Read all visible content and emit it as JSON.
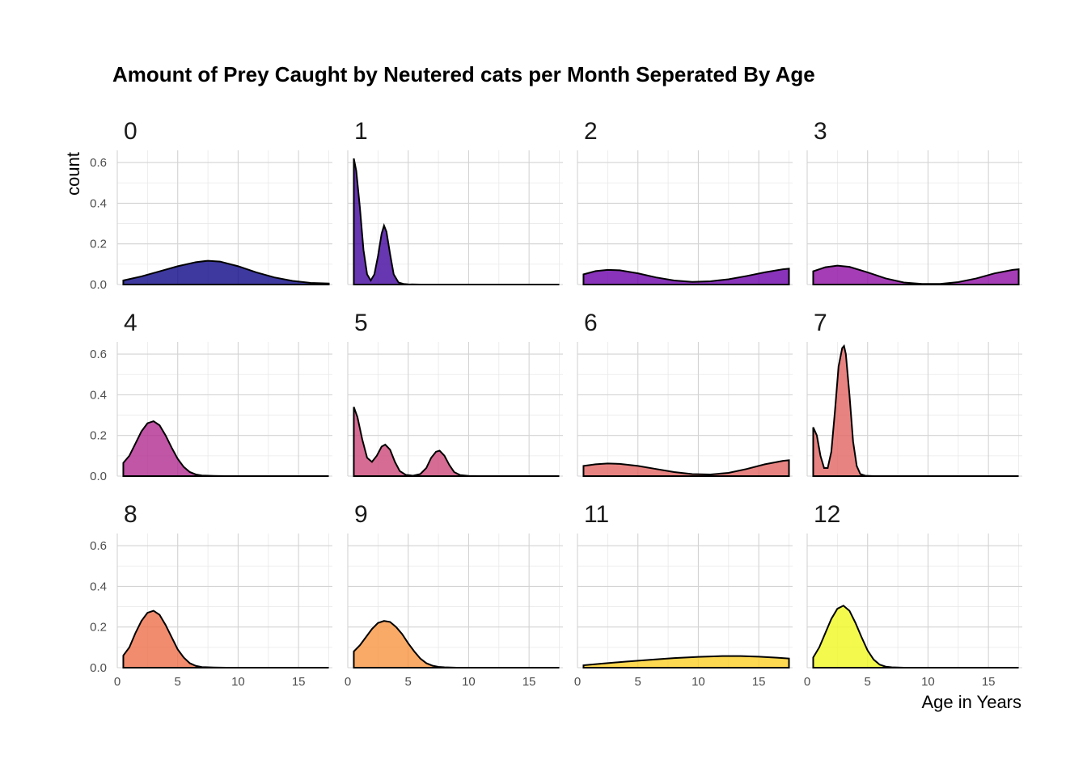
{
  "chart_data": {
    "type": "area",
    "title": "Amount of Prey Caught by Neutered cats per Month Seperated By Age",
    "xlabel": "Age in Years",
    "ylabel": "count",
    "xlim": [
      0,
      17.8
    ],
    "ylim": [
      0,
      0.66
    ],
    "x_ticks": [
      "0",
      "5",
      "10",
      "15"
    ],
    "y_ticks": [
      "0.0",
      "0.2",
      "0.4",
      "0.6"
    ],
    "grid": true,
    "legend": "none",
    "facet_columns": 4,
    "panels": [
      {
        "name": "0",
        "color": "#0d0887",
        "x": [
          0.5,
          2,
          3.5,
          5,
          6.5,
          7.5,
          8.5,
          10,
          11.5,
          13,
          14.5,
          16,
          17.5
        ],
        "y": [
          0.02,
          0.04,
          0.065,
          0.09,
          0.11,
          0.117,
          0.113,
          0.09,
          0.06,
          0.035,
          0.018,
          0.008,
          0.005
        ]
      },
      {
        "name": "1",
        "color": "#41049d",
        "x": [
          0.5,
          0.7,
          1,
          1.3,
          1.6,
          1.9,
          2.2,
          2.5,
          2.8,
          3,
          3.2,
          3.5,
          3.8,
          4.2,
          4.6,
          5,
          6,
          8,
          10,
          12,
          14,
          16,
          17.5
        ],
        "y": [
          0.62,
          0.56,
          0.38,
          0.17,
          0.05,
          0.02,
          0.05,
          0.14,
          0.25,
          0.29,
          0.26,
          0.15,
          0.05,
          0.01,
          0.003,
          0.001,
          0,
          0,
          0,
          0,
          0,
          0,
          0
        ]
      },
      {
        "name": "2",
        "color": "#6a00a8",
        "x": [
          0.5,
          1.5,
          2.5,
          3.5,
          5,
          6.5,
          8,
          9.5,
          11,
          12.5,
          14,
          15.5,
          17,
          17.5
        ],
        "y": [
          0.05,
          0.066,
          0.072,
          0.07,
          0.055,
          0.035,
          0.02,
          0.013,
          0.016,
          0.026,
          0.042,
          0.06,
          0.075,
          0.078
        ]
      },
      {
        "name": "3",
        "color": "#8f0da4",
        "x": [
          0.5,
          1.5,
          2.5,
          3.5,
          5,
          6.5,
          8,
          9.5,
          11,
          12.5,
          14,
          15.5,
          17,
          17.5
        ],
        "y": [
          0.065,
          0.085,
          0.093,
          0.087,
          0.06,
          0.03,
          0.01,
          0.003,
          0.003,
          0.012,
          0.03,
          0.055,
          0.072,
          0.075
        ]
      },
      {
        "name": "4",
        "color": "#b12a90",
        "x": [
          0.5,
          1,
          1.5,
          2,
          2.5,
          3,
          3.5,
          4,
          4.5,
          5,
          5.5,
          6,
          6.5,
          7,
          8,
          9,
          11,
          13,
          15,
          17.5
        ],
        "y": [
          0.065,
          0.1,
          0.16,
          0.22,
          0.26,
          0.27,
          0.25,
          0.2,
          0.14,
          0.085,
          0.045,
          0.02,
          0.008,
          0.003,
          0.001,
          0,
          0,
          0,
          0,
          0
        ]
      },
      {
        "name": "5",
        "color": "#cc4778",
        "x": [
          0.5,
          0.8,
          1.2,
          1.6,
          2,
          2.4,
          2.8,
          3.1,
          3.5,
          3.9,
          4.3,
          4.8,
          5.4,
          6,
          6.5,
          6.9,
          7.3,
          7.6,
          8,
          8.4,
          8.8,
          9.3,
          10,
          11,
          13,
          15,
          17.5
        ],
        "y": [
          0.34,
          0.29,
          0.18,
          0.09,
          0.07,
          0.1,
          0.145,
          0.155,
          0.13,
          0.07,
          0.025,
          0.006,
          0.002,
          0.01,
          0.04,
          0.09,
          0.12,
          0.125,
          0.1,
          0.055,
          0.02,
          0.005,
          0.001,
          0,
          0,
          0,
          0
        ]
      },
      {
        "name": "6",
        "color": "#e16462",
        "x": [
          0.5,
          1.5,
          2.5,
          3.5,
          5,
          6.5,
          8,
          9.5,
          11,
          12.5,
          14,
          15.5,
          17,
          17.5
        ],
        "y": [
          0.05,
          0.058,
          0.062,
          0.06,
          0.05,
          0.035,
          0.02,
          0.01,
          0.008,
          0.016,
          0.035,
          0.058,
          0.075,
          0.078
        ]
      },
      {
        "name": "7",
        "color": "#e16462",
        "x": [
          0.5,
          0.8,
          1.1,
          1.4,
          1.7,
          2,
          2.3,
          2.6,
          2.9,
          3.05,
          3.2,
          3.5,
          3.8,
          4.1,
          4.4,
          4.8,
          5.5,
          7,
          10,
          13,
          15,
          17.5
        ],
        "y": [
          0.24,
          0.2,
          0.1,
          0.04,
          0.04,
          0.12,
          0.32,
          0.54,
          0.63,
          0.64,
          0.6,
          0.4,
          0.17,
          0.05,
          0.01,
          0.002,
          0,
          0,
          0,
          0,
          0,
          0
        ]
      },
      {
        "name": "8",
        "color": "#ef6f4a",
        "x": [
          0.5,
          1,
          1.5,
          2,
          2.5,
          3,
          3.5,
          4,
          4.5,
          5,
          5.5,
          6,
          6.5,
          7,
          8,
          9,
          11,
          13,
          15,
          17.5
        ],
        "y": [
          0.06,
          0.1,
          0.17,
          0.23,
          0.27,
          0.28,
          0.26,
          0.21,
          0.15,
          0.09,
          0.05,
          0.022,
          0.009,
          0.003,
          0.001,
          0,
          0,
          0,
          0,
          0
        ]
      },
      {
        "name": "9",
        "color": "#f89540",
        "x": [
          0.5,
          1,
          1.5,
          2,
          2.5,
          3,
          3.5,
          4,
          4.5,
          5,
          5.5,
          6,
          6.5,
          7,
          7.5,
          8,
          9,
          11,
          13,
          15,
          17.5
        ],
        "y": [
          0.08,
          0.11,
          0.15,
          0.19,
          0.22,
          0.23,
          0.225,
          0.2,
          0.165,
          0.12,
          0.08,
          0.045,
          0.022,
          0.01,
          0.004,
          0.002,
          0,
          0,
          0,
          0,
          0
        ]
      },
      {
        "name": "11",
        "color": "#fcce25",
        "x": [
          0.5,
          2,
          4,
          6,
          8,
          10,
          12,
          13.5,
          15,
          16.5,
          17.5
        ],
        "y": [
          0.012,
          0.02,
          0.03,
          0.039,
          0.047,
          0.053,
          0.057,
          0.057,
          0.054,
          0.049,
          0.045
        ]
      },
      {
        "name": "12",
        "color": "#f0f921",
        "x": [
          0.5,
          1,
          1.5,
          2,
          2.5,
          3,
          3.5,
          4,
          4.5,
          5,
          5.5,
          6,
          6.5,
          7,
          8,
          9,
          11,
          13,
          15,
          17.5
        ],
        "y": [
          0.05,
          0.1,
          0.17,
          0.24,
          0.29,
          0.305,
          0.28,
          0.22,
          0.15,
          0.085,
          0.04,
          0.015,
          0.005,
          0.002,
          0,
          0,
          0,
          0,
          0,
          0
        ]
      }
    ]
  }
}
